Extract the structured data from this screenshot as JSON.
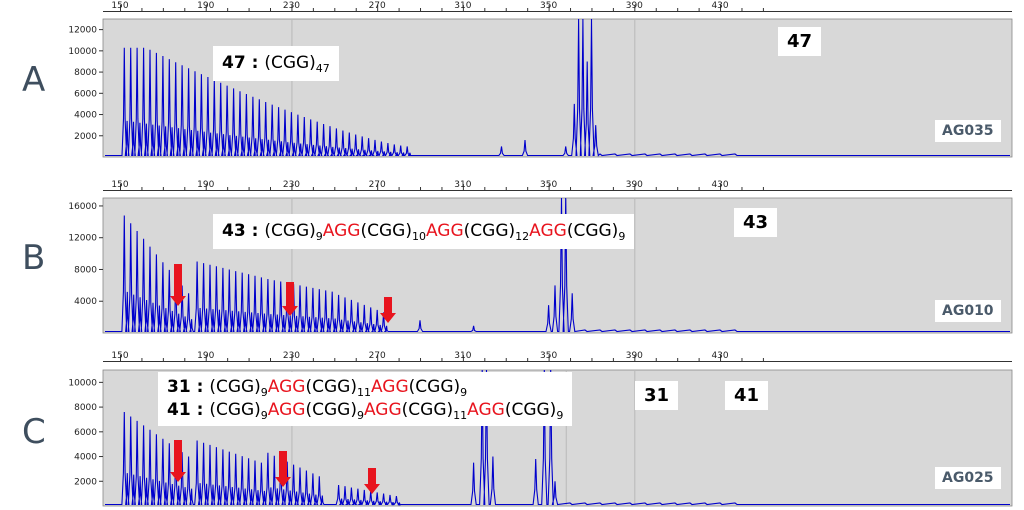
{
  "chart_data": [
    {
      "type": "line",
      "panel": "A",
      "sample": "AG035",
      "x_ticks": [
        150,
        190,
        230,
        270,
        310,
        350,
        390,
        430
      ],
      "y_ticks": [
        2000,
        4000,
        6000,
        8000,
        10000,
        12000
      ],
      "ylim": [
        0,
        13000
      ],
      "annotation": "47 : (CGG)47",
      "peak_labels": [
        "47"
      ],
      "series": [
        {
          "kind": "stutter_ladder",
          "x_start": 152,
          "x_end": 284,
          "spacing": 3,
          "heights": [
            10300,
            3000
          ]
        },
        {
          "kind": "peaks",
          "points": [
            [
              328,
              1000
            ],
            [
              339,
              1600
            ],
            [
              358,
              1000
            ],
            [
              362,
              5000
            ],
            [
              364,
              13000
            ],
            [
              366,
              13000
            ],
            [
              368,
              9000
            ],
            [
              370,
              13000
            ],
            [
              372,
              3000
            ]
          ]
        }
      ]
    },
    {
      "type": "line",
      "panel": "B",
      "sample": "AG010",
      "x_ticks": [
        150,
        190,
        230,
        270,
        310,
        350,
        390,
        430
      ],
      "y_ticks": [
        4000,
        8000,
        12000,
        16000
      ],
      "ylim": [
        0,
        17000
      ],
      "annotation": "43 : (CGG)9AGG(CGG)10AGG(CGG)12AGG(CGG)9",
      "peak_labels": [
        "43"
      ],
      "series": [
        {
          "kind": "stutter_groups",
          "groups": [
            {
              "x_start": 152,
              "count": 11,
              "spacing": 3,
              "heights": [
                14800,
                5000
              ]
            },
            {
              "x_start": 186,
              "count": 11,
              "spacing": 3,
              "heights": [
                9000,
                7000
              ]
            },
            {
              "x_start": 219,
              "count": 11,
              "spacing": 3,
              "heights": [
                6800,
                5200
              ]
            },
            {
              "x_start": 252,
              "count": 8,
              "spacing": 3,
              "heights": [
                4800,
                2600
              ]
            }
          ]
        },
        {
          "kind": "peaks",
          "points": [
            [
              290,
              1600
            ],
            [
              315,
              900
            ],
            [
              350,
              3500
            ],
            [
              353,
              6000
            ],
            [
              356,
              17000
            ],
            [
              358,
              17000
            ],
            [
              361,
              5000
            ]
          ]
        }
      ]
    },
    {
      "type": "line",
      "panel": "C",
      "sample": "AG025",
      "x_ticks": [
        150,
        190,
        230,
        270,
        310,
        350,
        390,
        430
      ],
      "y_ticks": [
        2000,
        4000,
        6000,
        8000,
        10000
      ],
      "ylim": [
        0,
        11000
      ],
      "annotation": [
        "31 : (CGG)9AGG(CGG)11AGG(CGG)9",
        "41 : (CGG)9AGG(CGG)9AGG(CGG)11AGG(CGG)9"
      ],
      "peak_labels": [
        "31",
        "41"
      ],
      "series": [
        {
          "kind": "stutter_groups",
          "groups": [
            {
              "x_start": 152,
              "count": 11,
              "spacing": 3,
              "heights": [
                7600,
                4000
              ]
            },
            {
              "x_start": 186,
              "count": 11,
              "spacing": 3,
              "heights": [
                5300,
                3500
              ]
            },
            {
              "x_start": 219,
              "count": 9,
              "spacing": 3,
              "heights": [
                4300,
                2400
              ]
            },
            {
              "x_start": 252,
              "count": 10,
              "spacing": 3,
              "heights": [
                1700,
                800
              ]
            }
          ]
        },
        {
          "kind": "peaks",
          "points": [
            [
              315,
              3500
            ],
            [
              319,
              11000
            ],
            [
              321,
              11000
            ],
            [
              324,
              4000
            ],
            [
              344,
              3800
            ],
            [
              348,
              11000
            ],
            [
              351,
              11000
            ],
            [
              353,
              2000
            ]
          ]
        }
      ]
    }
  ],
  "panel_letters": {
    "a": "A",
    "b": "B",
    "c": "C"
  },
  "annotations": {
    "a": {
      "num": "47",
      "sep": " : ",
      "t1": "(CGG)",
      "s1": "47"
    },
    "b": {
      "num": "43",
      "sep": " : ",
      "t1": "(CGG)",
      "s1": "9",
      "r1": "AGG",
      "t2": "(CGG)",
      "s2": "10",
      "r2": "AGG",
      "t3": "(CGG)",
      "s3": "12",
      "r3": "AGG",
      "t4": "(CGG)",
      "s4": "9"
    },
    "c1": {
      "num": "31",
      "sep": " : ",
      "t1": "(CGG)",
      "s1": "9",
      "r1": "AGG",
      "t2": "(CGG)",
      "s2": "11",
      "r2": "AGG",
      "t3": "(CGG)",
      "s3": "9"
    },
    "c2": {
      "num": "41",
      "sep": " : ",
      "t1": "(CGG)",
      "s1": "9",
      "r1": "AGG",
      "t2": "(CGG)",
      "s2": "9",
      "r2": "AGG",
      "t3": "(CGG)",
      "s3": "11",
      "r3": "AGG",
      "t4": "(CGG)",
      "s4": "9"
    }
  },
  "peak_labels": {
    "a": "47",
    "b": "43",
    "c1": "31",
    "c2": "41"
  },
  "samples": {
    "a": "AG035",
    "b": "AG010",
    "c": "AG025"
  },
  "colors": {
    "trace": "#0000cc",
    "plot_bg": "#d8d8d8",
    "arrow": "#e8141e",
    "letter": "#3e4e5e"
  }
}
